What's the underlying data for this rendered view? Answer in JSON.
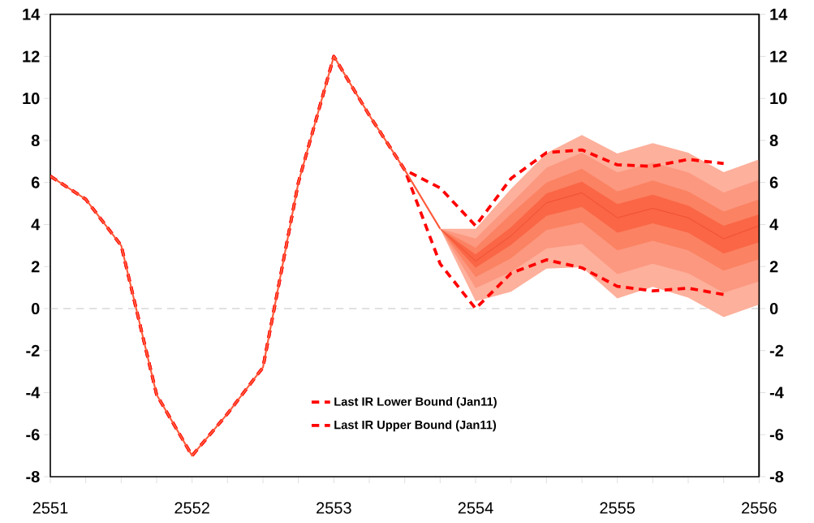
{
  "chart_data": {
    "type": "line",
    "xlim": [
      2551,
      2556
    ],
    "xticks": [
      2551,
      {
        "value": 2551.25,
        "label": null
      },
      {
        "value": 2551.5,
        "label": null
      },
      {
        "value": 2551.75,
        "label": null
      },
      2552,
      {
        "value": 2552.25,
        "label": null
      },
      {
        "value": 2552.5,
        "label": null
      },
      {
        "value": 2552.75,
        "label": null
      },
      2553,
      {
        "value": 2553.25,
        "label": null
      },
      {
        "value": 2553.5,
        "label": null
      },
      {
        "value": 2553.75,
        "label": null
      },
      2554,
      {
        "value": 2554.25,
        "label": null
      },
      {
        "value": 2554.5,
        "label": null
      },
      {
        "value": 2554.75,
        "label": null
      },
      2555,
      {
        "value": 2555.25,
        "label": null
      },
      {
        "value": 2555.5,
        "label": null
      },
      {
        "value": 2555.75,
        "label": null
      },
      2556
    ],
    "ylim": [
      -8,
      14
    ],
    "yticks": [
      -8,
      -6,
      -4,
      -2,
      0,
      2,
      4,
      6,
      8,
      10,
      12,
      14
    ],
    "y2lim": [
      -8,
      14
    ],
    "y2ticks": [
      -8,
      -6,
      -4,
      -2,
      0,
      2,
      4,
      6,
      8,
      10,
      12,
      14
    ],
    "grid": false,
    "legend": "bottom",
    "ref_lines": [
      {
        "axis": "y",
        "value": 0,
        "color": "#a8a8a8",
        "line_style": "dashed"
      }
    ],
    "series": [
      {
        "color": "#fdb09c",
        "x": [
          2553.75,
          2554,
          2554.25,
          2554.5,
          2554.75,
          2555,
          2555.25,
          2555.5,
          2555.75,
          2556
        ],
        "values": [
          null,
          null,
          null,
          null,
          null,
          null,
          null,
          null,
          null,
          null
        ],
        "lower": [
          3.8,
          0.35,
          0.8,
          1.9,
          1.97,
          0.48,
          1.03,
          0.52,
          -0.41,
          0.19
        ],
        "upper": [
          3.8,
          3.8,
          5.7,
          7.4,
          8.26,
          7.38,
          7.87,
          7.42,
          6.49,
          7.1
        ]
      },
      {
        "color": "#fc9880",
        "x": [
          2553.75,
          2554,
          2554.25,
          2554.5,
          2554.75,
          2555,
          2555.25,
          2555.5,
          2555.75,
          2556
        ],
        "values": [
          null,
          null,
          null,
          null,
          null,
          null,
          null,
          null,
          null,
          null
        ],
        "lower": [
          3.8,
          0.97,
          1.74,
          2.86,
          3.07,
          1.64,
          2.13,
          1.68,
          0.75,
          1.29
        ],
        "upper": [
          3.8,
          3.33,
          5.0,
          6.7,
          7.42,
          6.48,
          6.94,
          6.48,
          5.52,
          6.13
        ]
      },
      {
        "color": "#fb8262",
        "x": [
          2553.75,
          2554,
          2554.25,
          2554.5,
          2554.75,
          2555,
          2555.25,
          2555.5,
          2555.75,
          2556
        ],
        "values": [
          null,
          null,
          null,
          null,
          null,
          null,
          null,
          null,
          null,
          null
        ],
        "lower": [
          3.8,
          1.5,
          2.39,
          3.74,
          4.1,
          2.77,
          3.23,
          2.77,
          1.81,
          2.35
        ],
        "upper": [
          3.8,
          2.9,
          4.5,
          6.0,
          6.65,
          5.57,
          6.09,
          5.57,
          4.62,
          5.2
        ]
      },
      {
        "color": "#fa6646",
        "x": [
          2553.75,
          2554,
          2554.25,
          2554.5,
          2554.75,
          2555,
          2555.25,
          2555.5,
          2555.75,
          2556
        ],
        "values": [
          null,
          null,
          null,
          null,
          null,
          null,
          null,
          null,
          null,
          null
        ],
        "lower": [
          3.8,
          1.94,
          3.03,
          4.41,
          4.84,
          3.61,
          4.06,
          3.61,
          2.62,
          3.16
        ],
        "upper": [
          3.8,
          2.58,
          3.87,
          5.48,
          6.04,
          4.97,
          5.42,
          4.9,
          3.94,
          4.48
        ]
      },
      {
        "color": "#ee4a2c",
        "line_style": "solid",
        "x": [
          2553.75,
          2554,
          2554.25,
          2554.5,
          2554.75,
          2555,
          2555.25,
          2555.5,
          2555.75,
          2556
        ],
        "values": [
          3.8,
          2.26,
          3.46,
          5.03,
          5.51,
          4.32,
          4.77,
          4.32,
          3.32,
          3.94
        ]
      },
      {
        "name": "Last IR Lower Bound (Jan11)",
        "color": "#ff0000",
        "line_style": "dashed",
        "x": [
          2551,
          2551.25,
          2551.5,
          2551.75,
          2552,
          2552.25,
          2552.5,
          2552.75,
          2553,
          2553.25,
          2553.5,
          2553.75,
          2554,
          2554.25,
          2554.5,
          2554.75,
          2555,
          2555.25,
          2555.5,
          2555.75
        ],
        "values": [
          6.3,
          5.2,
          3.0,
          -4.1,
          -7.0,
          -5.0,
          -2.8,
          6.0,
          12.0,
          9.2,
          6.6,
          2.13,
          0,
          1.68,
          2.32,
          1.94,
          1.06,
          0.84,
          0.97,
          0.67
        ]
      },
      {
        "name": "Last IR Upper Bound (Jan11)",
        "color": "#ff0000",
        "line_style": "dashed",
        "x": [
          2551,
          2551.25,
          2551.5,
          2551.75,
          2552,
          2552.25,
          2552.5,
          2552.75,
          2553,
          2553.25,
          2553.5,
          2553.75,
          2554,
          2554.25,
          2554.5,
          2554.75,
          2555,
          2555.25,
          2555.5,
          2555.75
        ],
        "values": [
          6.3,
          5.2,
          3.0,
          -4.1,
          -7.0,
          -5.0,
          -2.8,
          6.0,
          12.0,
          9.2,
          6.6,
          5.74,
          3.94,
          6.19,
          7.42,
          7.55,
          6.84,
          6.77,
          7.1,
          6.9
        ]
      },
      {
        "color": "#ff5a3a",
        "line_style": "solid",
        "x": [
          2551,
          2551.25,
          2551.5,
          2551.75,
          2552,
          2552.25,
          2552.5,
          2552.75,
          2553,
          2553.25,
          2553.5,
          2553.75
        ],
        "values": [
          6.3,
          5.2,
          3.0,
          -4.1,
          -7.0,
          -5.0,
          -2.8,
          6.0,
          12.0,
          9.2,
          6.6,
          3.8
        ]
      }
    ]
  }
}
